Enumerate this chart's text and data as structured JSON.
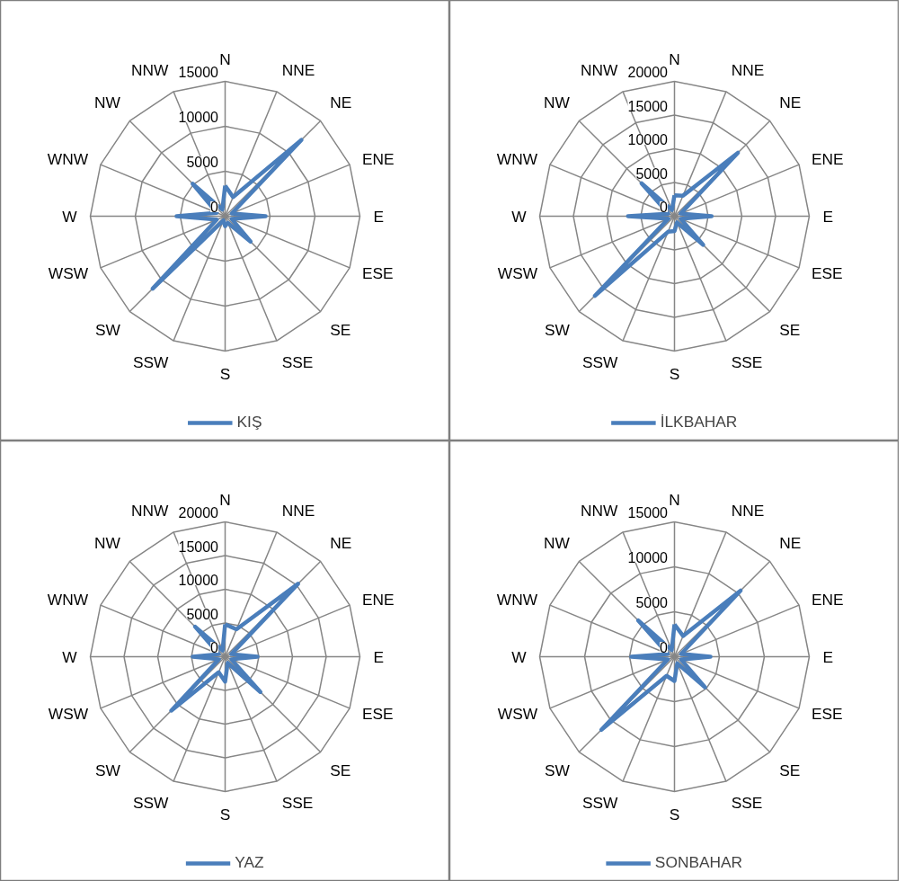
{
  "chart_data": [
    {
      "type": "radar",
      "categories": [
        "N",
        "NNE",
        "NE",
        "ENE",
        "E",
        "ESE",
        "SE",
        "SSE",
        "S",
        "SSW",
        "SW",
        "WSW",
        "W",
        "WNW",
        "NW",
        "NNW"
      ],
      "ylim": [
        0,
        15000
      ],
      "yticks": [
        0,
        5000,
        10000,
        15000
      ],
      "grid": true,
      "legend": "bottom",
      "series": [
        {
          "name": "KIŞ",
          "color": "#4a7ebb",
          "values": [
            3400,
            2300,
            12000,
            800,
            4500,
            800,
            4000,
            800,
            1100,
            500,
            11400,
            1000,
            5400,
            1000,
            5100,
            800
          ]
        }
      ]
    },
    {
      "type": "radar",
      "categories": [
        "N",
        "NNE",
        "NE",
        "ENE",
        "E",
        "ESE",
        "SE",
        "SSE",
        "S",
        "SSW",
        "SW",
        "WSW",
        "W",
        "WNW",
        "NW",
        "NNW"
      ],
      "ylim": [
        0,
        20000
      ],
      "yticks": [
        0,
        5000,
        10000,
        15000,
        20000
      ],
      "grid": true,
      "legend": "bottom",
      "series": [
        {
          "name": "İLKBAHAR",
          "color": "#4a7ebb",
          "values": [
            3100,
            3300,
            13300,
            1000,
            5500,
            1000,
            6000,
            1000,
            2200,
            2500,
            16700,
            1000,
            6900,
            1000,
            6900,
            1000
          ]
        }
      ]
    },
    {
      "type": "radar",
      "categories": [
        "N",
        "NNE",
        "NE",
        "ENE",
        "E",
        "ESE",
        "SE",
        "SSE",
        "S",
        "SSW",
        "SW",
        "WSW",
        "W",
        "WNW",
        "NW",
        "NNW"
      ],
      "ylim": [
        0,
        20000
      ],
      "yticks": [
        0,
        5000,
        10000,
        15000,
        20000
      ],
      "grid": true,
      "legend": "bottom",
      "series": [
        {
          "name": "YAZ",
          "color": "#4a7ebb",
          "values": [
            4800,
            4400,
            15300,
            1000,
            4800,
            1000,
            7400,
            1000,
            3700,
            2500,
            11300,
            1000,
            4800,
            1000,
            6300,
            1000
          ]
        }
      ]
    },
    {
      "type": "radar",
      "categories": [
        "N",
        "NNE",
        "NE",
        "ENE",
        "E",
        "ESE",
        "SE",
        "SSE",
        "S",
        "SSW",
        "SW",
        "WSW",
        "W",
        "WNW",
        "NW",
        "NNW"
      ],
      "ylim": [
        0,
        15000
      ],
      "yticks": [
        0,
        5000,
        10000,
        15000
      ],
      "grid": true,
      "legend": "bottom",
      "series": [
        {
          "name": "SONBAHAR",
          "color": "#4a7ebb",
          "values": [
            3600,
            2500,
            10400,
            800,
            4000,
            800,
            4800,
            800,
            2700,
            2300,
            11500,
            800,
            4800,
            800,
            5700,
            800
          ]
        }
      ]
    }
  ]
}
